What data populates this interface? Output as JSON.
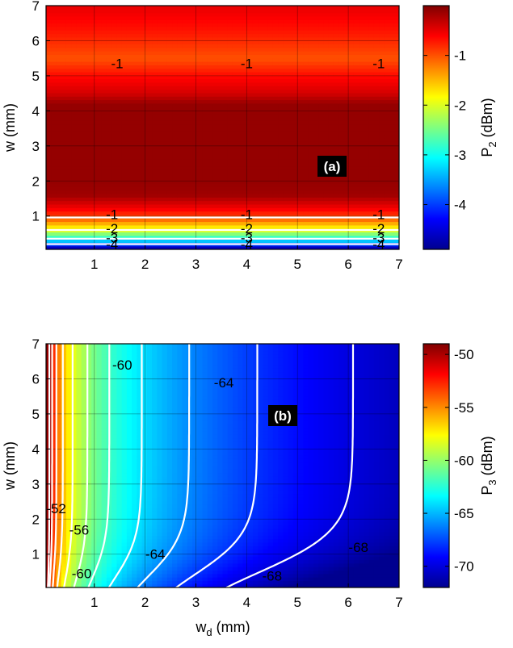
{
  "chart_data": [
    {
      "type": "heatmap",
      "panel_label": "(a)",
      "ylabel": "w (mm)",
      "colorbar_label": "P",
      "colorbar_sub": "2",
      "colorbar_unit": " (dBm)",
      "xlim": [
        0.05,
        7
      ],
      "ylim": [
        0.05,
        7
      ],
      "x_ticks": [
        "1",
        "2",
        "3",
        "4",
        "5",
        "6",
        "7"
      ],
      "y_ticks": [
        "1",
        "2",
        "3",
        "4",
        "5",
        "6",
        "7"
      ],
      "colorbar_range": [
        -4.9,
        0
      ],
      "colorbar_ticks": [
        "-1",
        "-2",
        "-3",
        "-4"
      ],
      "grid": true,
      "field": "P2 varies only with w: about -0.9 dBm at w = 7, rising to about -0.1 dBm for w between 1.7 and 4.3, falling to about -4.9 dBm near w = 0.05",
      "contour_levels": [
        -1,
        -2,
        -3,
        -4
      ],
      "contour_labels": [
        {
          "text": "-1",
          "x": 1.45,
          "y": 5.35
        },
        {
          "text": "-1",
          "x": 4.0,
          "y": 5.35
        },
        {
          "text": "-1",
          "x": 6.6,
          "y": 5.35
        },
        {
          "text": "-1",
          "x": 1.35,
          "y": 1.05
        },
        {
          "text": "-1",
          "x": 4.0,
          "y": 1.05
        },
        {
          "text": "-1",
          "x": 6.6,
          "y": 1.05
        },
        {
          "text": "-2",
          "x": 1.35,
          "y": 0.65
        },
        {
          "text": "-2",
          "x": 4.0,
          "y": 0.65
        },
        {
          "text": "-2",
          "x": 6.6,
          "y": 0.65
        },
        {
          "text": "-3",
          "x": 1.35,
          "y": 0.38
        },
        {
          "text": "-3",
          "x": 4.0,
          "y": 0.38
        },
        {
          "text": "-3",
          "x": 6.6,
          "y": 0.38
        },
        {
          "text": "-4",
          "x": 1.35,
          "y": 0.2
        },
        {
          "text": "-4",
          "x": 4.0,
          "y": 0.2
        },
        {
          "text": "-4",
          "x": 6.6,
          "y": 0.2
        }
      ]
    },
    {
      "type": "heatmap",
      "panel_label": "(b)",
      "xlabel": "w",
      "xlabel_sub": "d",
      "xlabel_unit": " (mm)",
      "ylabel": "w (mm)",
      "colorbar_label": "P",
      "colorbar_sub": "3",
      "colorbar_unit": " (dBm)",
      "xlim": [
        0.05,
        7
      ],
      "ylim": [
        0.05,
        7
      ],
      "x_ticks": [
        "1",
        "2",
        "3",
        "4",
        "5",
        "6",
        "7"
      ],
      "y_ticks": [
        "1",
        "2",
        "3",
        "4",
        "5",
        "6",
        "7"
      ],
      "colorbar_range": [
        -72,
        -49
      ],
      "colorbar_ticks": [
        "-50",
        "-55",
        "-60",
        "-65",
        "-70"
      ],
      "grid": true,
      "field": "P3 is about -49 dBm near w_d = 0.05 and decreases toward larger w_d and smaller w, reaching about -72 dBm near w_d = 7, w = 0.05",
      "contour_levels": [
        -50,
        -52,
        -54,
        -56,
        -58,
        -60,
        -62,
        -64,
        -66,
        -68,
        -70
      ],
      "contour_labels": [
        {
          "text": "-60",
          "x": 1.55,
          "y": 6.4
        },
        {
          "text": "-64",
          "x": 3.55,
          "y": 5.9
        },
        {
          "text": "-52",
          "x": 0.25,
          "y": 2.3
        },
        {
          "text": "-56",
          "x": 0.7,
          "y": 1.7
        },
        {
          "text": "-60",
          "x": 0.75,
          "y": 0.45
        },
        {
          "text": "-64",
          "x": 2.2,
          "y": 1.0
        },
        {
          "text": "-68",
          "x": 4.5,
          "y": 0.38
        },
        {
          "text": "-68",
          "x": 6.2,
          "y": 1.2
        }
      ]
    }
  ]
}
